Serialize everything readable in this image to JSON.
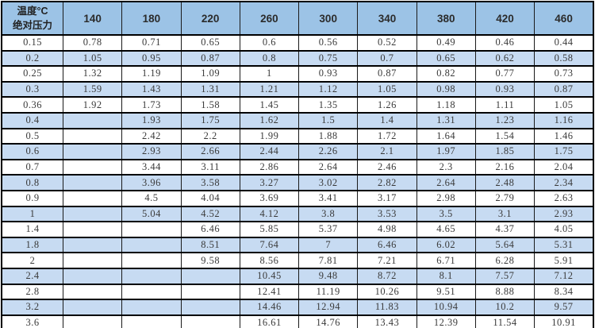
{
  "colors": {
    "header_bg": "#9cc3e6",
    "row_alt_bg": "#c7dbf2",
    "row_bg": "#ffffff",
    "border": "#000000",
    "data_text": "#3a3a3a",
    "header_text": "#2b2b2b"
  },
  "chart_data": {
    "type": "table",
    "title": "",
    "corner": {
      "line1": "温度°C",
      "line2": "绝对压力"
    },
    "columns": [
      "140",
      "180",
      "220",
      "260",
      "300",
      "340",
      "380",
      "420",
      "460"
    ],
    "rows": [
      {
        "label": "0.15",
        "values": [
          "0.78",
          "0.71",
          "0.65",
          "0.6",
          "0.56",
          "0.52",
          "0.49",
          "0.46",
          "0.44"
        ]
      },
      {
        "label": "0.2",
        "values": [
          "1.05",
          "0.95",
          "0.87",
          "0.8",
          "0.75",
          "0.7",
          "0.65",
          "0.62",
          "0.58"
        ]
      },
      {
        "label": "0.25",
        "values": [
          "1.32",
          "1.19",
          "1.09",
          "1",
          "0.93",
          "0.87",
          "0.82",
          "0.77",
          "0.73"
        ]
      },
      {
        "label": "0.3",
        "values": [
          "1.59",
          "1.43",
          "1.31",
          "1.21",
          "1.12",
          "1.05",
          "0.98",
          "0.93",
          "0.87"
        ]
      },
      {
        "label": "0.36",
        "values": [
          "1.92",
          "1.73",
          "1.58",
          "1.45",
          "1.35",
          "1.26",
          "1.18",
          "1.11",
          "1.05"
        ]
      },
      {
        "label": "0.4",
        "values": [
          "",
          "1.93",
          "1.75",
          "1.62",
          "1.5",
          "1.4",
          "1.31",
          "1.23",
          "1.16"
        ]
      },
      {
        "label": "0.5",
        "values": [
          "",
          "2.42",
          "2.2",
          "1.99",
          "1.88",
          "1.72",
          "1.64",
          "1.54",
          "1.46"
        ]
      },
      {
        "label": "0.6",
        "values": [
          "",
          "2.93",
          "2.66",
          "2.44",
          "2.26",
          "2.1",
          "1.97",
          "1.85",
          "1.75"
        ]
      },
      {
        "label": "0.7",
        "values": [
          "",
          "3.44",
          "3.11",
          "2.86",
          "2.64",
          "2.46",
          "2.3",
          "2.16",
          "2.04"
        ]
      },
      {
        "label": "0.8",
        "values": [
          "",
          "3.96",
          "3.58",
          "3.27",
          "3.02",
          "2.82",
          "2.64",
          "2.48",
          "2.34"
        ]
      },
      {
        "label": "0.9",
        "values": [
          "",
          "4.5",
          "4.04",
          "3.69",
          "3.41",
          "3.17",
          "2.98",
          "2.79",
          "2.63"
        ]
      },
      {
        "label": "1",
        "values": [
          "",
          "5.04",
          "4.52",
          "4.12",
          "3.8",
          "3.53",
          "3.5",
          "3.1",
          "2.93"
        ]
      },
      {
        "label": "1.4",
        "values": [
          "",
          "",
          "6.46",
          "5.85",
          "5.37",
          "4.98",
          "4.65",
          "4.37",
          "4.05"
        ]
      },
      {
        "label": "1.8",
        "values": [
          "",
          "",
          "8.51",
          "7.64",
          "7",
          "6.46",
          "6.02",
          "5.64",
          "5.31"
        ]
      },
      {
        "label": "2",
        "values": [
          "",
          "",
          "9.58",
          "8.56",
          "7.81",
          "7.21",
          "6.71",
          "6.28",
          "5.91"
        ]
      },
      {
        "label": "2.4",
        "values": [
          "",
          "",
          "",
          "10.45",
          "9.48",
          "8.72",
          "8.1",
          "7.57",
          "7.12"
        ]
      },
      {
        "label": "2.8",
        "values": [
          "",
          "",
          "",
          "12.41",
          "11.19",
          "10.26",
          "9.51",
          "8.88",
          "8.34"
        ]
      },
      {
        "label": "3.2",
        "values": [
          "",
          "",
          "",
          "14.46",
          "12.94",
          "11.83",
          "10.94",
          "10.2",
          "9.57"
        ]
      },
      {
        "label": "3.6",
        "values": [
          "",
          "",
          "",
          "16.61",
          "14.76",
          "13.43",
          "12.39",
          "11.54",
          "10.91"
        ]
      }
    ]
  }
}
